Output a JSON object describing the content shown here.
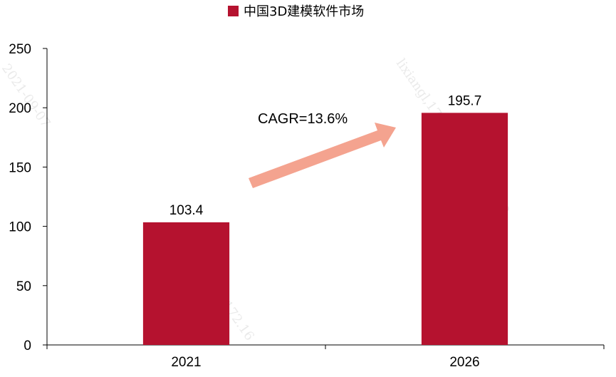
{
  "chart_data": {
    "type": "bar",
    "categories": [
      "2021",
      "2026"
    ],
    "series": [
      {
        "name": "中国3D建模软件市场",
        "values": [
          103.4,
          195.7
        ],
        "color": "#b5122f"
      }
    ],
    "data_labels": [
      "103.4",
      "195.7"
    ],
    "ylim": [
      0,
      250
    ],
    "yticks": [
      0,
      50,
      100,
      150,
      200,
      250
    ],
    "grid": false,
    "legend_position": "top-center",
    "annotation": {
      "text": "CAGR=13.6%",
      "arrow_color": "#f4a38f"
    },
    "watermark": [
      "2021-09-07",
      "lixiangl,172.16.32.20,2021-0",
      "lixiangl,172.16"
    ]
  }
}
